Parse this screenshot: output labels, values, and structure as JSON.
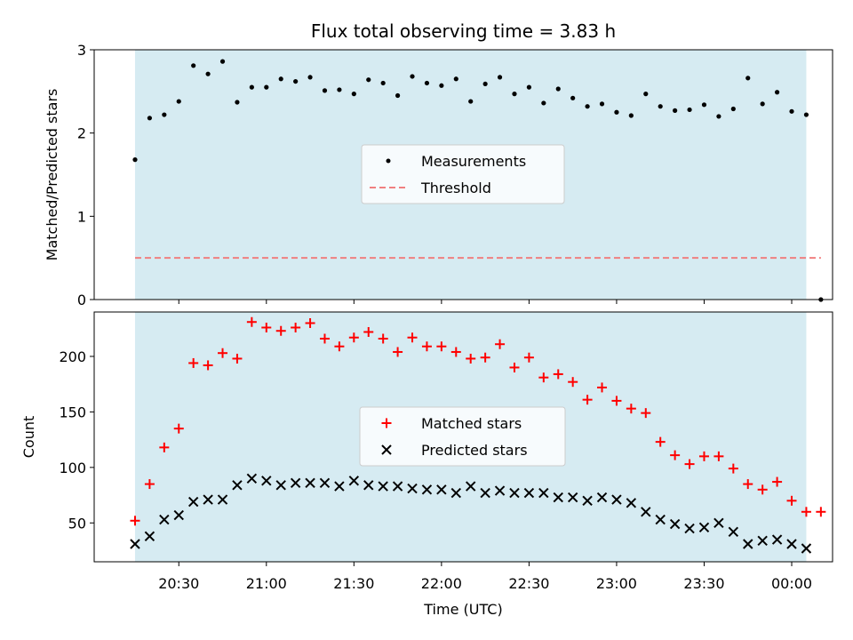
{
  "chart_data": [
    {
      "type": "scatter",
      "title": "Flux total observing time = 3.83 h",
      "ylabel": "Matched/Predicted stars",
      "xlabel": "",
      "ylim": [
        0,
        3
      ],
      "yticks": [
        0,
        1,
        2,
        3
      ],
      "legend": {
        "placement": "center",
        "entries": [
          "Measurements",
          "Threshold"
        ]
      },
      "colors": {
        "measurements": "#000000",
        "threshold": "#f08080",
        "observing_window": "#add8e6"
      },
      "observing_window": {
        "start_min": 1215,
        "end_min": 1445
      },
      "threshold": {
        "name": "Threshold",
        "value": 0.5,
        "x_range_min": [
          1215,
          1450
        ]
      },
      "series": [
        {
          "name": "Measurements",
          "x_min": [
            1215,
            1220,
            1225,
            1230,
            1235,
            1240,
            1245,
            1250,
            1255,
            1260,
            1265,
            1270,
            1275,
            1280,
            1285,
            1290,
            1295,
            1300,
            1305,
            1310,
            1315,
            1320,
            1325,
            1330,
            1335,
            1340,
            1345,
            1350,
            1355,
            1360,
            1365,
            1370,
            1375,
            1380,
            1385,
            1390,
            1395,
            1400,
            1405,
            1410,
            1415,
            1420,
            1425,
            1430,
            1435,
            1440,
            1445,
            1450
          ],
          "y": [
            1.68,
            2.18,
            2.22,
            2.38,
            2.81,
            2.71,
            2.86,
            2.37,
            2.55,
            2.55,
            2.65,
            2.62,
            2.67,
            2.51,
            2.52,
            2.47,
            2.64,
            2.6,
            2.45,
            2.68,
            2.6,
            2.57,
            2.65,
            2.38,
            2.59,
            2.67,
            2.47,
            2.55,
            2.36,
            2.53,
            2.42,
            2.32,
            2.35,
            2.25,
            2.21,
            2.47,
            2.32,
            2.27,
            2.28,
            2.34,
            2.2,
            2.29,
            2.66,
            2.35,
            2.49,
            2.26,
            2.22,
            0
          ]
        }
      ]
    },
    {
      "type": "scatter",
      "title": "",
      "xlabel": "Time (UTC)",
      "ylabel": "Count",
      "ylim": [
        15,
        240
      ],
      "yticks": [
        50,
        100,
        150,
        200
      ],
      "xlim_min": [
        1201,
        1454
      ],
      "xticks_min": [
        1230,
        1260,
        1290,
        1320,
        1350,
        1380,
        1410,
        1440
      ],
      "xtick_labels": [
        "20:30",
        "21:00",
        "21:30",
        "22:00",
        "22:30",
        "23:00",
        "23:30",
        "00:00"
      ],
      "legend": {
        "placement": "center",
        "entries": [
          "Matched stars",
          "Predicted stars"
        ]
      },
      "colors": {
        "matched": "#ff0000",
        "predicted": "#000000",
        "observing_window": "#add8e6"
      },
      "observing_window": {
        "start_min": 1215,
        "end_min": 1445
      },
      "series": [
        {
          "name": "Matched stars",
          "x_min": [
            1215,
            1220,
            1225,
            1230,
            1235,
            1240,
            1245,
            1250,
            1255,
            1260,
            1265,
            1270,
            1275,
            1280,
            1285,
            1290,
            1295,
            1300,
            1305,
            1310,
            1315,
            1320,
            1325,
            1330,
            1335,
            1340,
            1345,
            1350,
            1355,
            1360,
            1365,
            1370,
            1375,
            1380,
            1385,
            1390,
            1395,
            1400,
            1405,
            1410,
            1415,
            1420,
            1425,
            1430,
            1435,
            1440,
            1445,
            1450
          ],
          "y": [
            52,
            85,
            118,
            135,
            194,
            192,
            203,
            198,
            231,
            226,
            223,
            226,
            230,
            216,
            209,
            217,
            222,
            216,
            204,
            217,
            209,
            209,
            204,
            198,
            199,
            211,
            190,
            199,
            181,
            184,
            177,
            161,
            172,
            160,
            153,
            149,
            123,
            111,
            103,
            110,
            110,
            99,
            85,
            80,
            87,
            70,
            60,
            60
          ]
        },
        {
          "name": "Predicted stars",
          "x_min": [
            1215,
            1220,
            1225,
            1230,
            1235,
            1240,
            1245,
            1250,
            1255,
            1260,
            1265,
            1270,
            1275,
            1280,
            1285,
            1290,
            1295,
            1300,
            1305,
            1310,
            1315,
            1320,
            1325,
            1330,
            1335,
            1340,
            1345,
            1350,
            1355,
            1360,
            1365,
            1370,
            1375,
            1380,
            1385,
            1390,
            1395,
            1400,
            1405,
            1410,
            1415,
            1420,
            1425,
            1430,
            1435,
            1440,
            1445
          ],
          "y": [
            31,
            38,
            53,
            57,
            69,
            71,
            71,
            84,
            90,
            88,
            84,
            86,
            86,
            86,
            83,
            88,
            84,
            83,
            83,
            81,
            80,
            80,
            77,
            83,
            77,
            79,
            77,
            77,
            77,
            73,
            73,
            70,
            73,
            71,
            68,
            60,
            53,
            49,
            45,
            46,
            50,
            42,
            31,
            34,
            35,
            31,
            27
          ]
        }
      ]
    }
  ]
}
